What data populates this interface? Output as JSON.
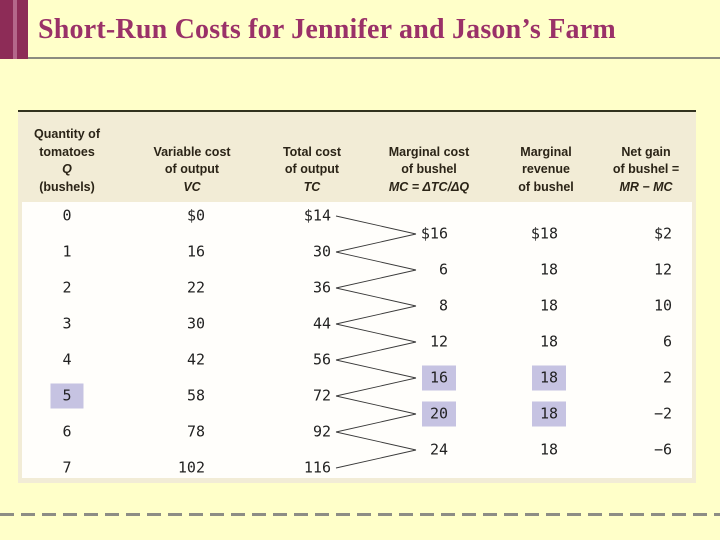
{
  "title": "Short-Run Costs for Jennifer and Jason’s Farm",
  "table": {
    "headers": [
      {
        "lines": [
          {
            "t": "Quantity of"
          },
          {
            "t": "tomatoes"
          },
          {
            "t": "Q",
            "i": true
          },
          {
            "t": "(bushels)"
          }
        ]
      },
      {
        "lines": [
          {
            "t": "Variable cost"
          },
          {
            "t": "of output"
          },
          {
            "t": "VC",
            "i": true
          }
        ]
      },
      {
        "lines": [
          {
            "t": "Total cost"
          },
          {
            "t": "of output"
          },
          {
            "t": "TC",
            "i": true
          }
        ]
      },
      {
        "lines": [
          {
            "t": "Marginal cost"
          },
          {
            "t": "of bushel"
          },
          {
            "t": "MC = ΔTC/ΔQ",
            "i": true
          }
        ]
      },
      {
        "lines": [
          {
            "t": "Marginal"
          },
          {
            "t": "revenue"
          },
          {
            "t": "of bushel"
          }
        ]
      },
      {
        "lines": [
          {
            "t": "Net gain"
          },
          {
            "t": "of bushel ="
          },
          {
            "t": "MR − MC",
            "i": true
          }
        ]
      }
    ],
    "rows": [
      {
        "q": "0",
        "vc": "$0",
        "tc": "$14"
      },
      {
        "q": "1",
        "vc": "16",
        "tc": "30"
      },
      {
        "q": "2",
        "vc": "22",
        "tc": "36"
      },
      {
        "q": "3",
        "vc": "30",
        "tc": "44"
      },
      {
        "q": "4",
        "vc": "42",
        "tc": "56"
      },
      {
        "q": "5",
        "vc": "58",
        "tc": "72",
        "q_highlight": true
      },
      {
        "q": "6",
        "vc": "78",
        "tc": "92"
      },
      {
        "q": "7",
        "vc": "102",
        "tc": "116"
      }
    ],
    "marginals": [
      {
        "mc": "$16",
        "mr": "$18",
        "net": "$2"
      },
      {
        "mc": "6",
        "mr": "18",
        "net": "12"
      },
      {
        "mc": "8",
        "mr": "18",
        "net": "10"
      },
      {
        "mc": "12",
        "mr": "18",
        "net": "6"
      },
      {
        "mc": "16",
        "mr": "18",
        "net": "2",
        "mc_highlight": true,
        "mr_highlight": true
      },
      {
        "mc": "20",
        "mr": "18",
        "net": "−2",
        "mc_highlight": true,
        "mr_highlight": true
      },
      {
        "mc": "24",
        "mr": "18",
        "net": "−6"
      }
    ]
  },
  "colors": {
    "slide_background": "#ffffc9",
    "accent_dark": "#8d2c57",
    "accent_light": "#b4678a",
    "title_text": "#9a3168",
    "table_header_bg": "#f2ecd6",
    "highlight": "#c6c3e2"
  }
}
